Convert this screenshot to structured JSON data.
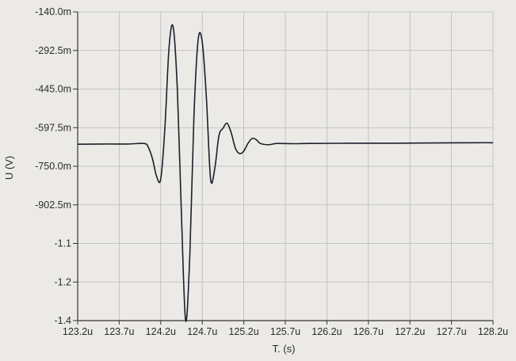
{
  "chart_data": {
    "type": "line",
    "title": "",
    "xlabel": "T. (s)",
    "ylabel": "U (V)",
    "x_tick_labels": [
      "123.2u",
      "123.7u",
      "124.2u",
      "124.7u",
      "125.2u",
      "125.7u",
      "126.2u",
      "126.7u",
      "127.2u",
      "127.7u",
      "128.2u"
    ],
    "x_tick_values": [
      123.2,
      123.7,
      124.2,
      124.7,
      125.2,
      125.7,
      126.2,
      126.7,
      127.2,
      127.7,
      128.2
    ],
    "y_tick_labels": [
      "-140.0m",
      "-292.5m",
      "-445.0m",
      "-597.5m",
      "-750.0m",
      "-902.5m",
      "-1.1",
      "-1.2",
      "-1.4"
    ],
    "y_tick_values": [
      -0.14,
      -0.2925,
      -0.445,
      -0.5975,
      -0.75,
      -0.9025,
      -1.055,
      -1.2075,
      -1.36
    ],
    "xlim": [
      123.2,
      128.2
    ],
    "ylim": [
      -1.36,
      -0.14
    ],
    "x_unit_note": "microseconds",
    "grid": true,
    "line_color": "#1e1e2a",
    "grid_color": "#b9b9b9",
    "series": [
      {
        "x": [
          123.2,
          123.5,
          123.8,
          124.0,
          124.05,
          124.1,
          124.15,
          124.2,
          124.25,
          124.3,
          124.35,
          124.4,
          124.45,
          124.5,
          124.55,
          124.6,
          124.65,
          124.7,
          124.75,
          124.8,
          124.85,
          124.9,
          124.95,
          125.0,
          125.05,
          125.1,
          125.15,
          125.2,
          125.25,
          125.3,
          125.35,
          125.4,
          125.5,
          125.6,
          125.8,
          126.0,
          126.5,
          127.0,
          127.5,
          128.0,
          128.2
        ],
        "y": [
          -0.663,
          -0.662,
          -0.662,
          -0.66,
          -0.675,
          -0.72,
          -0.79,
          -0.8,
          -0.6,
          -0.28,
          -0.2,
          -0.45,
          -0.95,
          -1.36,
          -1.1,
          -0.55,
          -0.25,
          -0.26,
          -0.48,
          -0.8,
          -0.76,
          -0.63,
          -0.6,
          -0.58,
          -0.62,
          -0.68,
          -0.7,
          -0.69,
          -0.66,
          -0.64,
          -0.645,
          -0.66,
          -0.665,
          -0.66,
          -0.661,
          -0.66,
          -0.659,
          -0.659,
          -0.658,
          -0.657,
          -0.657
        ]
      }
    ]
  }
}
